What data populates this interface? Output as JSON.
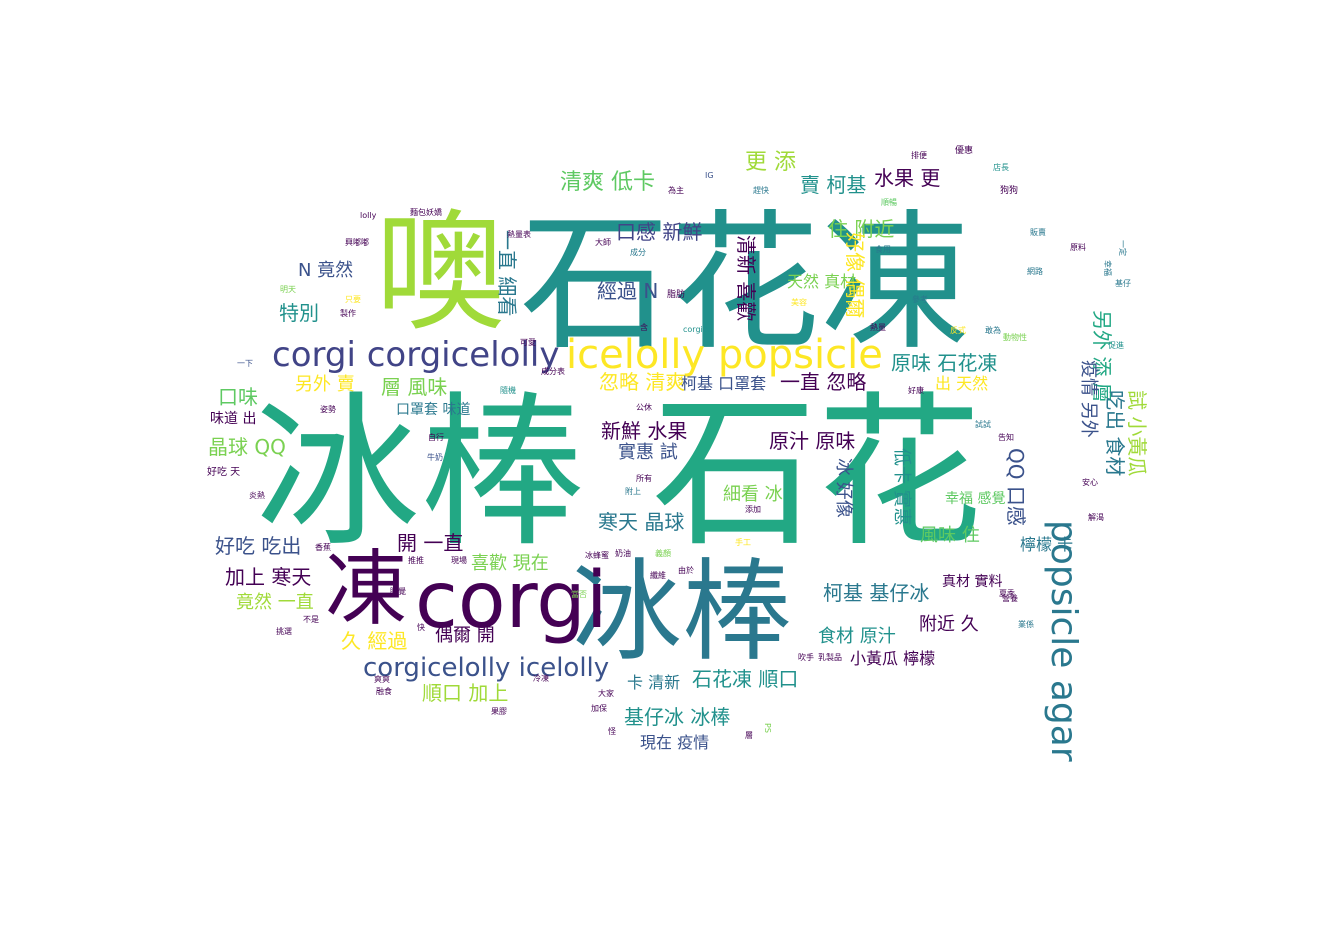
{
  "palette": [
    "#440154",
    "#3b528b",
    "#21918c",
    "#5ec962",
    "#fde725",
    "#a0da39",
    "#2a788e",
    "#22a884",
    "#414487",
    "#7ad151"
  ],
  "words": [
    {
      "text": "石花凍",
      "color": "#21918c"
    },
    {
      "text": "冰棒",
      "color": "#22a884"
    },
    {
      "text": "石花",
      "color": "#22a884"
    },
    {
      "text": "冰棒",
      "color": "#2a788e"
    },
    {
      "text": "噢",
      "color": "#a0da39"
    },
    {
      "text": "凍",
      "color": "#440154"
    },
    {
      "text": "corgi",
      "color": "#440154"
    },
    {
      "text": "icelolly popsicle",
      "color": "#fde725"
    },
    {
      "text": "corgi corgicelolly",
      "color": "#414487"
    },
    {
      "text": "popsicle agar",
      "color": "#2a788e"
    },
    {
      "text": "corgicelolly icelolly",
      "color": "#3b528b"
    },
    {
      "text": "清爽 低卡",
      "color": "#5ec962"
    },
    {
      "text": "更 添",
      "color": "#a0da39"
    },
    {
      "text": "賣 柯基",
      "color": "#21918c"
    },
    {
      "text": "水果 更",
      "color": "#440154"
    },
    {
      "text": "口感 新鮮",
      "color": "#414487"
    },
    {
      "text": "一直 細看",
      "color": "#2a788e"
    },
    {
      "text": "N 竟然",
      "color": "#3b528b"
    },
    {
      "text": "經過 N",
      "color": "#3b528b"
    },
    {
      "text": "住 附近",
      "color": "#7ad151"
    },
    {
      "text": "天然 真材",
      "color": "#7ad151"
    },
    {
      "text": "特別",
      "color": "#21918c"
    },
    {
      "text": "清新 喜歡",
      "color": "#440154"
    },
    {
      "text": "好像 偶爾",
      "color": "#fde725"
    },
    {
      "text": "另外 添 層",
      "color": "#22a884"
    },
    {
      "text": "原味 石花凍",
      "color": "#21918c"
    },
    {
      "text": "忽略 清爽",
      "color": "#fde725"
    },
    {
      "text": "柯基 口罩套",
      "color": "#3b528b"
    },
    {
      "text": "一直 忽略",
      "color": "#440154"
    },
    {
      "text": "出 天然",
      "color": "#fde725"
    },
    {
      "text": "疫情 另外",
      "color": "#3b528b"
    },
    {
      "text": "口味",
      "color": "#5ec962"
    },
    {
      "text": "另外 賣",
      "color": "#fde725"
    },
    {
      "text": "層 風味",
      "color": "#7ad151"
    },
    {
      "text": "口罩套 味道",
      "color": "#2a788e"
    },
    {
      "text": "晶球 QQ",
      "color": "#7ad151"
    },
    {
      "text": "新鮮 水果",
      "color": "#440154"
    },
    {
      "text": "實惠 試",
      "color": "#3b528b"
    },
    {
      "text": "原汁 原味",
      "color": "#440154"
    },
    {
      "text": "冰 好像",
      "color": "#3b528b"
    },
    {
      "text": "低卡 實惠",
      "color": "#21918c"
    },
    {
      "text": "QQ 口感",
      "color": "#3b528b"
    },
    {
      "text": "吃出 食材",
      "color": "#2a788e"
    },
    {
      "text": "試 小黃瓜",
      "color": "#a0da39"
    },
    {
      "text": "細看 冰",
      "color": "#7ad151"
    },
    {
      "text": "寒天 晶球",
      "color": "#2a788e"
    },
    {
      "text": "好吃 吃出",
      "color": "#3b528b"
    },
    {
      "text": "開 一直",
      "color": "#440154"
    },
    {
      "text": "喜歡 現在",
      "color": "#7ad151"
    },
    {
      "text": "風味 住",
      "color": "#5ec962"
    },
    {
      "text": "檸檬 卡",
      "color": "#2a788e"
    },
    {
      "text": "加上 寒天",
      "color": "#440154"
    },
    {
      "text": "竟然 一直",
      "color": "#a0da39"
    },
    {
      "text": "柯基 基仔冰",
      "color": "#2a788e"
    },
    {
      "text": "幸福 感覺",
      "color": "#5ec962"
    },
    {
      "text": "真材 實料",
      "color": "#440154"
    },
    {
      "text": "久 經過",
      "color": "#fde725"
    },
    {
      "text": "偶爾 開",
      "color": "#440154"
    },
    {
      "text": "食材 原汁",
      "color": "#21918c"
    },
    {
      "text": "附近 久",
      "color": "#440154"
    },
    {
      "text": "小黃瓜 檸檬",
      "color": "#440154"
    },
    {
      "text": "順口 加上",
      "color": "#a0da39"
    },
    {
      "text": "卡 清新",
      "color": "#2a788e"
    },
    {
      "text": "石花凍 順口",
      "color": "#21918c"
    },
    {
      "text": "基仔冰 冰棒",
      "color": "#21918c"
    },
    {
      "text": "現在 疫情",
      "color": "#3b528b"
    },
    {
      "text": "優惠",
      "color": "#440154"
    },
    {
      "text": "排便",
      "color": "#440154"
    },
    {
      "text": "店長",
      "color": "#21918c"
    },
    {
      "text": "IG",
      "color": "#3b528b"
    },
    {
      "text": "為主",
      "color": "#440154"
    },
    {
      "text": "趕快",
      "color": "#2a788e"
    },
    {
      "text": "狗狗",
      "color": "#440154"
    },
    {
      "text": "lolly",
      "color": "#440154"
    },
    {
      "text": "麵包妖嬌",
      "color": "#440154"
    },
    {
      "text": "順暢",
      "color": "#5ec962"
    },
    {
      "text": "販賣",
      "color": "#2a788e"
    },
    {
      "text": "原料",
      "color": "#440154"
    },
    {
      "text": "一定",
      "color": "#2a788e"
    },
    {
      "text": "幸福",
      "color": "#2a788e"
    },
    {
      "text": "基仔",
      "color": "#2a788e"
    },
    {
      "text": "熱量表",
      "color": "#440154"
    },
    {
      "text": "食用",
      "color": "#2a788e"
    },
    {
      "text": "網路",
      "color": "#2a788e"
    },
    {
      "text": "大師",
      "color": "#440154"
    },
    {
      "text": "成分",
      "color": "#2a788e"
    },
    {
      "text": "脂肪",
      "color": "#440154"
    },
    {
      "text": "興嘟嘟",
      "color": "#440154"
    },
    {
      "text": "明天",
      "color": "#7ad151"
    },
    {
      "text": "只要",
      "color": "#fde725"
    },
    {
      "text": "製作",
      "color": "#440154"
    },
    {
      "text": "可愛",
      "color": "#440154"
    },
    {
      "text": "美容",
      "color": "#fde725"
    },
    {
      "text": "參考",
      "color": "#2a788e"
    },
    {
      "text": "熱量",
      "color": "#440154"
    },
    {
      "text": "含",
      "color": "#440154"
    },
    {
      "text": "corgice",
      "color": "#21918c"
    },
    {
      "text": "反式",
      "color": "#fde725"
    },
    {
      "text": "敢為",
      "color": "#2a788e"
    },
    {
      "text": "動物性",
      "color": "#7ad151"
    },
    {
      "text": "促進",
      "color": "#21918c"
    },
    {
      "text": "一下",
      "color": "#3b528b"
    },
    {
      "text": "隨機",
      "color": "#21918c"
    },
    {
      "text": "公休",
      "color": "#440154"
    },
    {
      "text": "好康",
      "color": "#440154"
    },
    {
      "text": "味道 出",
      "color": "#440154"
    },
    {
      "text": "姿勢",
      "color": "#440154"
    },
    {
      "text": "自行",
      "color": "#440154"
    },
    {
      "text": "牛奶",
      "color": "#3b528b"
    },
    {
      "text": "試試",
      "color": "#2a788e"
    },
    {
      "text": "告知",
      "color": "#440154"
    },
    {
      "text": "好吃 天",
      "color": "#440154"
    },
    {
      "text": "炎熱",
      "color": "#440154"
    },
    {
      "text": "所有",
      "color": "#440154"
    },
    {
      "text": "附上",
      "color": "#2a788e"
    },
    {
      "text": "添加",
      "color": "#440154"
    },
    {
      "text": "安心",
      "color": "#440154"
    },
    {
      "text": "解渴",
      "color": "#440154"
    },
    {
      "text": "香蕉",
      "color": "#440154"
    },
    {
      "text": "推推",
      "color": "#440154"
    },
    {
      "text": "現場",
      "color": "#440154"
    },
    {
      "text": "冰蜂蜜",
      "color": "#440154"
    },
    {
      "text": "奶油",
      "color": "#440154"
    },
    {
      "text": "義顏",
      "color": "#7ad151"
    },
    {
      "text": "手工",
      "color": "#fde725"
    },
    {
      "text": "纖維",
      "color": "#440154"
    },
    {
      "text": "由於",
      "color": "#440154"
    },
    {
      "text": "睡覺",
      "color": "#440154"
    },
    {
      "text": "當否",
      "color": "#7ad151"
    },
    {
      "text": "夏季",
      "color": "#440154"
    },
    {
      "text": "營養",
      "color": "#440154"
    },
    {
      "text": "挑選",
      "color": "#440154"
    },
    {
      "text": "不是",
      "color": "#440154"
    },
    {
      "text": "快",
      "color": "#440154"
    },
    {
      "text": "業係",
      "color": "#2a788e"
    },
    {
      "text": "吹手",
      "color": "#440154"
    },
    {
      "text": "乳製品",
      "color": "#440154"
    },
    {
      "text": "冷凍",
      "color": "#440154"
    },
    {
      "text": "爽爽",
      "color": "#440154"
    },
    {
      "text": "大家",
      "color": "#440154"
    },
    {
      "text": "融食",
      "color": "#440154"
    },
    {
      "text": "加保",
      "color": "#440154"
    },
    {
      "text": "果膠",
      "color": "#440154"
    },
    {
      "text": "成分表",
      "color": "#440154"
    },
    {
      "text": "怪",
      "color": "#440154"
    },
    {
      "text": "PS",
      "color": "#7ad151"
    },
    {
      "text": "層",
      "color": "#440154"
    }
  ]
}
